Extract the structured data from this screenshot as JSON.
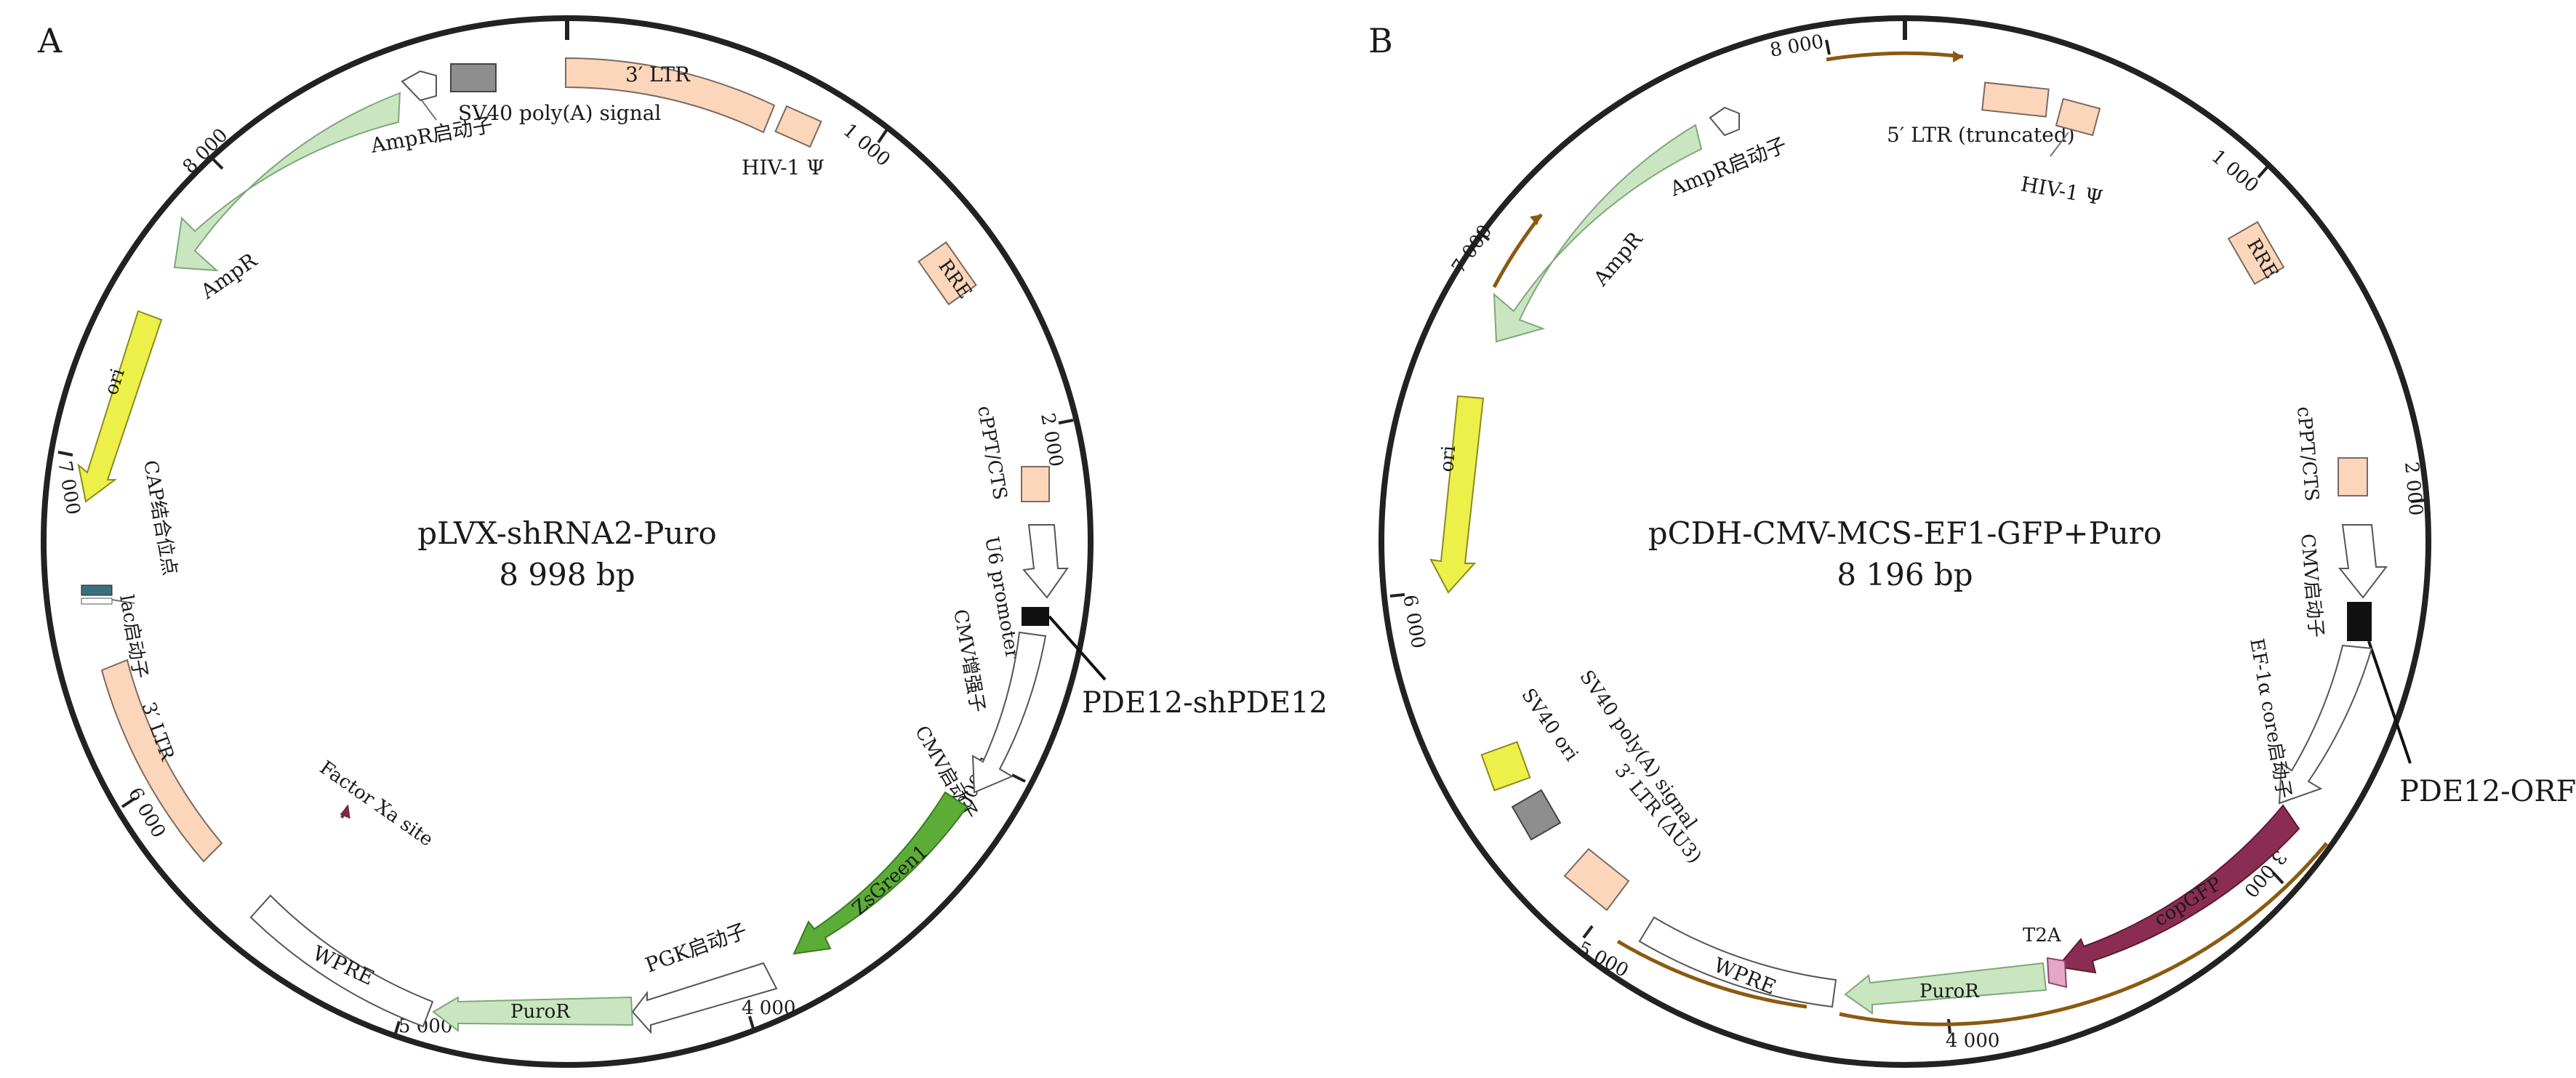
{
  "panels": [
    {
      "letter": "A",
      "name": "pLVX-shRNA2-Puro",
      "size": "8 998 bp",
      "ticks": [
        "1 000",
        "2 000",
        "3 000",
        "4 000",
        "5 000",
        "6 000",
        "7 000",
        "8 000"
      ],
      "labels": {
        "ltr3_top": "3′ LTR",
        "sv40_pa": "SV40 poly(A) signal",
        "ampr_promoter": "AmpR启动子",
        "hiv_psi": "HIV-1 Ψ",
        "ampr": "AmpR",
        "rre": "RRE",
        "ori": "ori",
        "cppt": "cPPT/CTS",
        "u6": "U6 promoter",
        "insert": "PDE12-shPDE12",
        "cmv_enh": "CMV增强子",
        "cmv_prom": "CMV启动子",
        "cap": "CAP结合位点",
        "lac": "lac启动子",
        "ltr3_left": "3′ LTR",
        "factor_xa": "Factor Xa site",
        "zsgreen": "ZsGreen1",
        "pgk": "PGK启动子",
        "wpre": "WPRE",
        "puror": "PuroR"
      }
    },
    {
      "letter": "B",
      "name": "pCDH-CMV-MCS-EF1-GFP+Puro",
      "size": "8 196 bp",
      "ticks": [
        "1 000",
        "2 000",
        "3 000",
        "4 000",
        "5 000",
        "6 000",
        "7 000",
        "8 000"
      ],
      "labels": {
        "ltr5": "5′ LTR (truncated)",
        "hiv_psi": "HIV-1 Ψ",
        "ampr_promoter": "AmpR启动子",
        "ampr": "AmpR",
        "rre": "RRE",
        "ori": "ori",
        "cppt": "cPPT/CTS",
        "cmv_prom": "CMV启动子",
        "insert": "PDE12-ORF",
        "ef1a": "EF-1α core启动子",
        "sv40_pa": "SV40 poly(A) signal",
        "sv40_ori": "SV40 ori",
        "ltr3": "3′ LTR (ΔU3)",
        "copgfp": "copGFP",
        "t2a": "T2A",
        "wpre": "WPRE",
        "puror": "PuroR"
      }
    }
  ]
}
